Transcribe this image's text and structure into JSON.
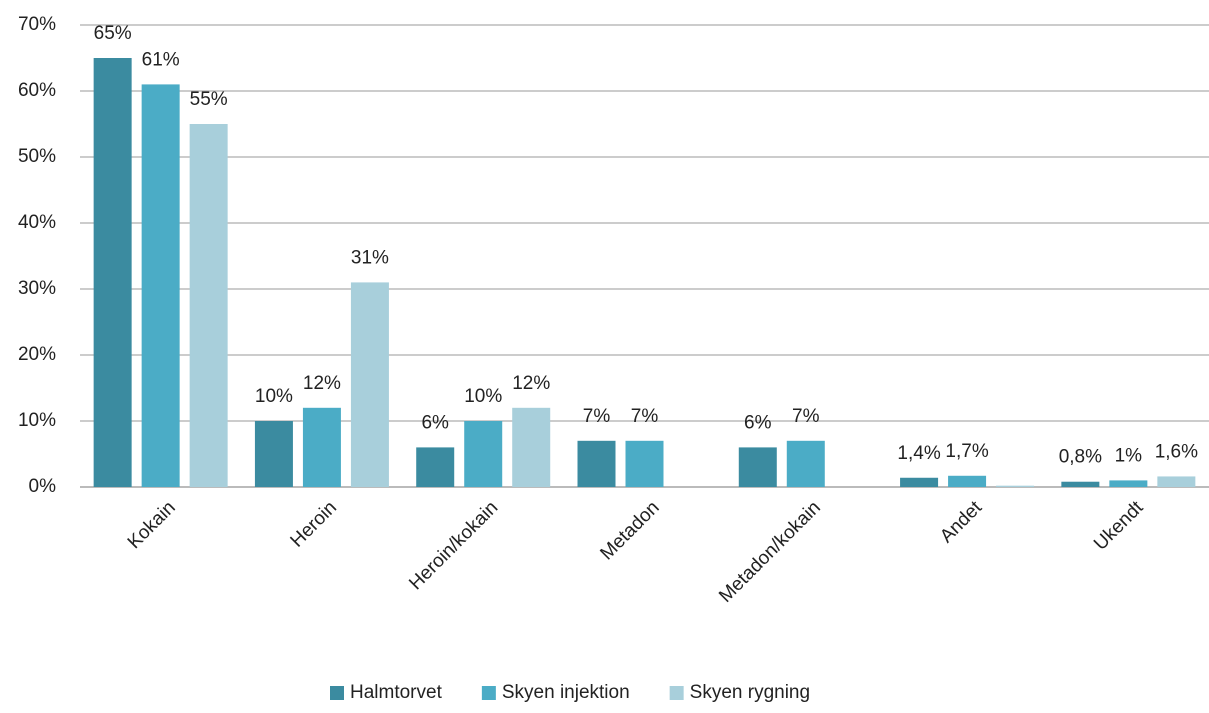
{
  "chart_data": {
    "type": "bar",
    "categories": [
      "Kokain",
      "Heroin",
      "Heroin/kokain",
      "Metadon",
      "Metadon/kokain",
      "Andet",
      "Ukendt"
    ],
    "series": [
      {
        "name": "Halmtorvet",
        "color": "#3b8ba0",
        "values": [
          65,
          10,
          6,
          7,
          6,
          1.4,
          0.8
        ],
        "value_labels": [
          "65%",
          "10%",
          "6%",
          "7%",
          "6%",
          "1,4%",
          "0,8%"
        ]
      },
      {
        "name": "Skyen injektion",
        "color": "#4bacc6",
        "values": [
          61,
          12,
          10,
          7,
          7,
          1.7,
          1
        ],
        "value_labels": [
          "61%",
          "12%",
          "10%",
          "7%",
          "7%",
          "1,7%",
          "1%"
        ]
      },
      {
        "name": "Skyen rygning",
        "color": "#a8cfdb",
        "values": [
          55,
          31,
          12,
          null,
          null,
          0.2,
          1.6
        ],
        "value_labels": [
          "55%",
          "31%",
          "12%",
          null,
          null,
          null,
          "1,6%"
        ]
      }
    ],
    "ylim": [
      0,
      70
    ],
    "yticks": [
      {
        "value": 0,
        "label": "0%"
      },
      {
        "value": 10,
        "label": "10%"
      },
      {
        "value": 20,
        "label": "20%"
      },
      {
        "value": 30,
        "label": "30%"
      },
      {
        "value": 40,
        "label": "40%"
      },
      {
        "value": 50,
        "label": "50%"
      },
      {
        "value": 60,
        "label": "60%"
      },
      {
        "value": 70,
        "label": "70%"
      }
    ],
    "grid": true,
    "legend": "bottom"
  }
}
